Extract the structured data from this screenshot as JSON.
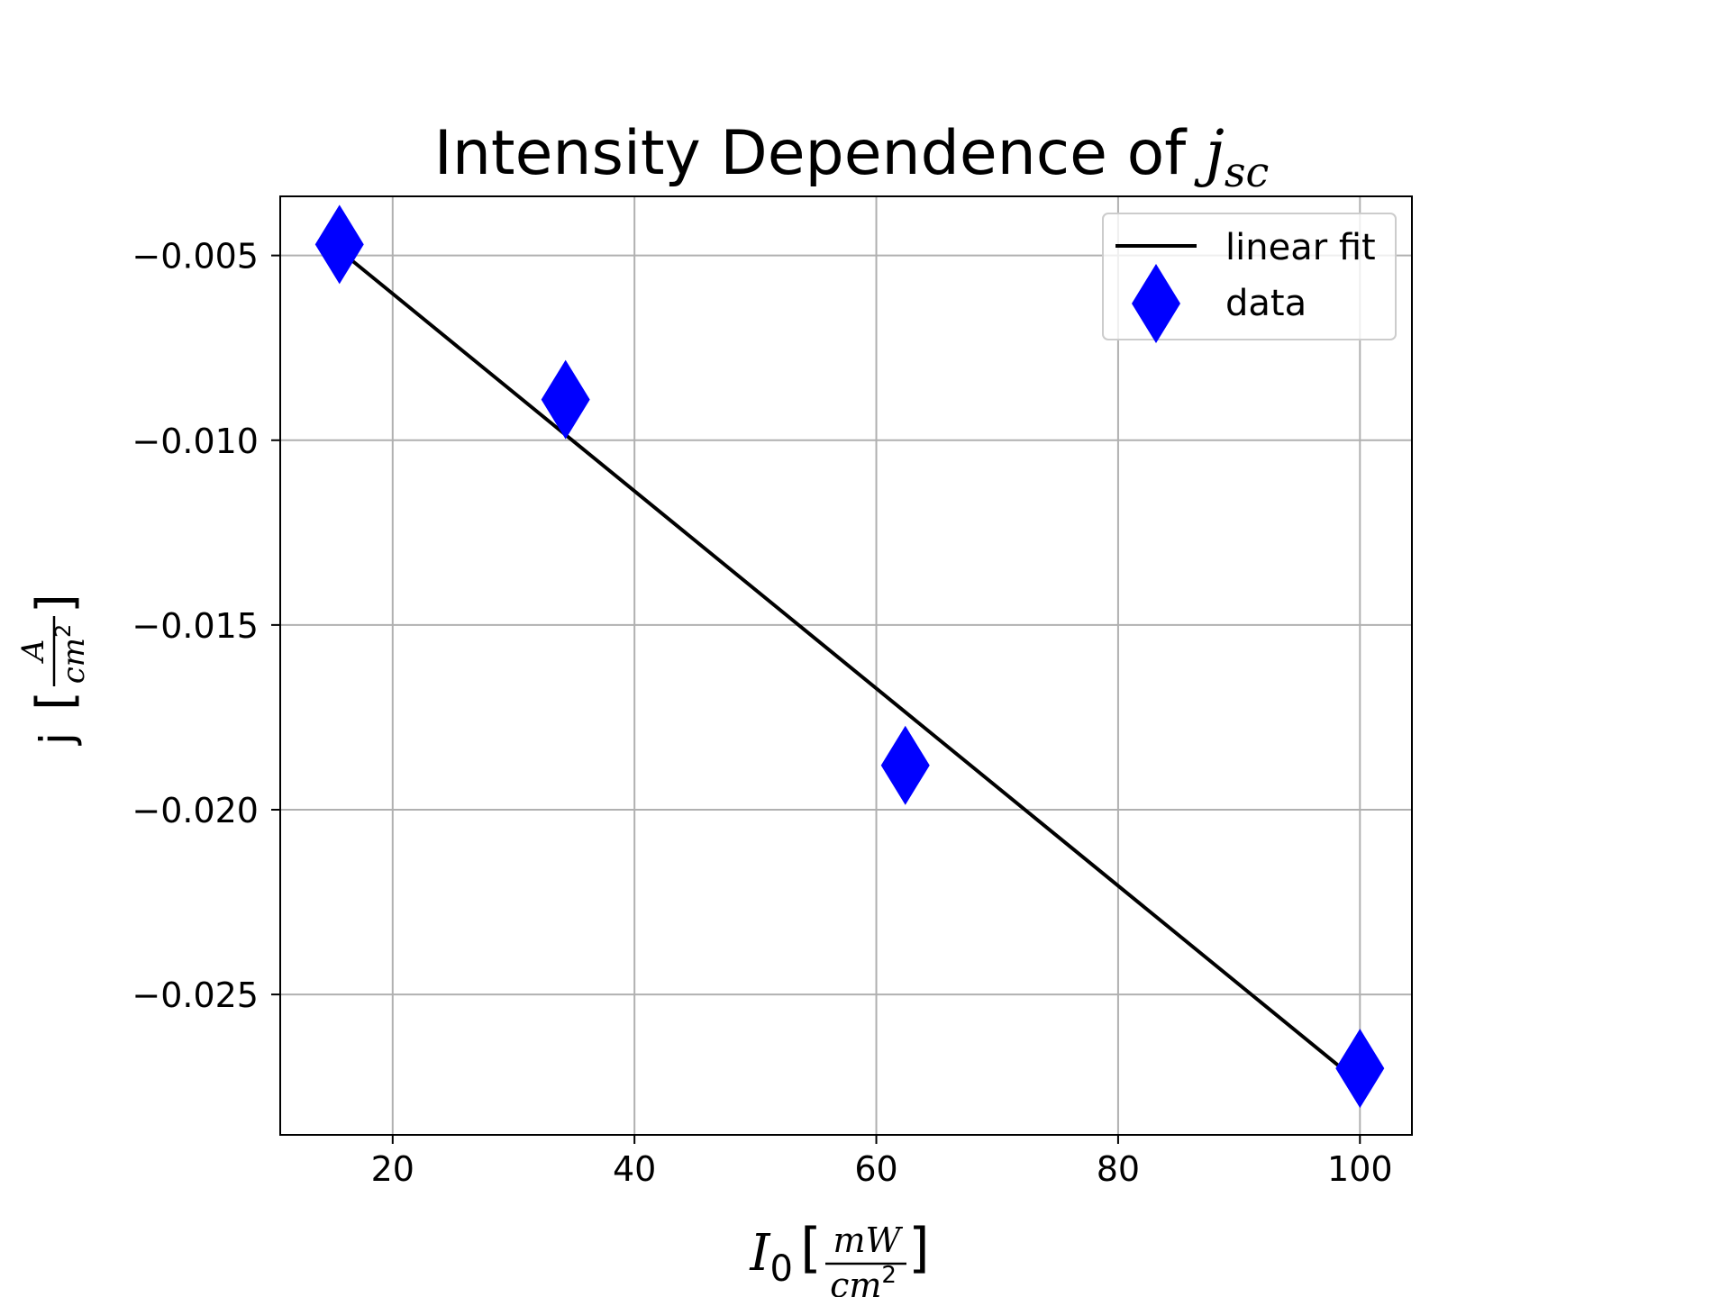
{
  "chart_data": {
    "type": "scatter",
    "title": "Intensity Dependence of",
    "title_math": {
      "base": "j",
      "sub": "sc"
    },
    "xlabel": {
      "base": "I",
      "sub": "0",
      "unit_num": "mW",
      "unit_den": "cm",
      "unit_den_sup": "2"
    },
    "ylabel": {
      "base": "j",
      "unit_num": "A",
      "unit_den": "cm",
      "unit_den_sup": "2"
    },
    "xlim": [
      10.7,
      104.3
    ],
    "ylim": [
      -0.0288,
      -0.0034
    ],
    "x_ticks": [
      20,
      40,
      60,
      80,
      100
    ],
    "x_tick_labels": [
      "20",
      "40",
      "60",
      "80",
      "100"
    ],
    "y_ticks": [
      -0.005,
      -0.01,
      -0.015,
      -0.02,
      -0.025
    ],
    "y_tick_labels": [
      "−0.005",
      "−0.010",
      "−0.015",
      "−0.020",
      "−0.025"
    ],
    "grid": true,
    "legend_position": "top-right",
    "series": [
      {
        "name": "linear fit",
        "kind": "line",
        "color": "#000000",
        "x": [
          16.5,
          100
        ],
        "y": [
          -0.0051,
          -0.0274
        ]
      },
      {
        "name": "data",
        "kind": "scatter",
        "marker": "diamond",
        "color": "#0000ff",
        "x": [
          15.6,
          34.3,
          62.4,
          100
        ],
        "y": [
          -0.0047,
          -0.0089,
          -0.0188,
          -0.027
        ]
      }
    ]
  }
}
